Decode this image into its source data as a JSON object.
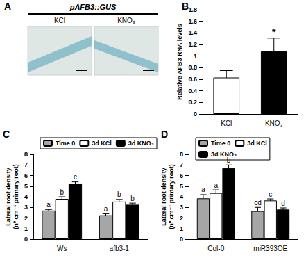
{
  "image_panel": {
    "annotations": [
      "A"
    ],
    "title": "pAFB3::GUS",
    "images": [
      "KCl",
      "KNO₃"
    ]
  },
  "chart_data": [
    {
      "type": "bar",
      "annotations": [
        "B"
      ],
      "categories": [
        "KCl",
        "KNO₃"
      ],
      "ylabel": "Relative AFB3 RNA levels",
      "ylim": [
        0,
        1.8
      ],
      "yticks": [
        0,
        0.2,
        0.4,
        0.6,
        0.8,
        1,
        1.2,
        1.4,
        1.6,
        1.8
      ],
      "values": [
        0.63,
        1.08
      ],
      "errors": [
        0.12,
        0.23
      ],
      "letters": [
        null,
        "*"
      ],
      "colors": [
        "#ffffff",
        "#000000"
      ],
      "grid": false
    },
    {
      "type": "bar",
      "annotations": [
        "C"
      ],
      "categories": [
        "Ws",
        "afb3-1"
      ],
      "ylabel": "Lateral root density\n(nº cm⁻¹ primary root)",
      "ylim": [
        0,
        8
      ],
      "yticks": [
        0,
        1,
        2,
        3,
        4,
        5,
        6,
        7,
        8
      ],
      "legend": "top",
      "grid": false,
      "series": [
        {
          "name": "Time 0",
          "color": "#a6a6a6",
          "values": [
            2.7,
            2.25
          ],
          "errors": [
            0.1,
            0.15
          ],
          "letters": [
            "a",
            "a"
          ]
        },
        {
          "name": "3d KCl",
          "color": "#ffffff",
          "values": [
            3.8,
            3.55
          ],
          "errors": [
            0.2,
            0.2
          ],
          "letters": [
            "b",
            "b"
          ]
        },
        {
          "name": "3d KNO₃",
          "color": "#000000",
          "values": [
            5.25,
            3.25
          ],
          "errors": [
            0.15,
            0.15
          ],
          "letters": [
            "c",
            "b"
          ]
        }
      ]
    },
    {
      "type": "bar",
      "annotations": [
        "D"
      ],
      "categories": [
        "Col-0",
        "miR393OE"
      ],
      "ylabel": "Lateral root density\n(nº cm⁻¹ primary root)",
      "ylim": [
        0,
        8
      ],
      "yticks": [
        0,
        1,
        2,
        3,
        4,
        5,
        6,
        7,
        8
      ],
      "legend": "top",
      "grid": false,
      "series": [
        {
          "name": "Time 0",
          "color": "#a6a6a6",
          "values": [
            3.85,
            2.65
          ],
          "errors": [
            0.35,
            0.35
          ],
          "letters": [
            "a",
            "cd"
          ]
        },
        {
          "name": "3d KCl",
          "color": "#ffffff",
          "values": [
            4.35,
            3.65
          ],
          "errors": [
            0.3,
            0.15
          ],
          "letters": [
            "a",
            "c"
          ]
        },
        {
          "name": "3d KNO₃",
          "color": "#000000",
          "values": [
            6.7,
            2.8
          ],
          "errors": [
            0.3,
            0.15
          ],
          "letters": [
            "b",
            "d"
          ]
        }
      ]
    }
  ]
}
